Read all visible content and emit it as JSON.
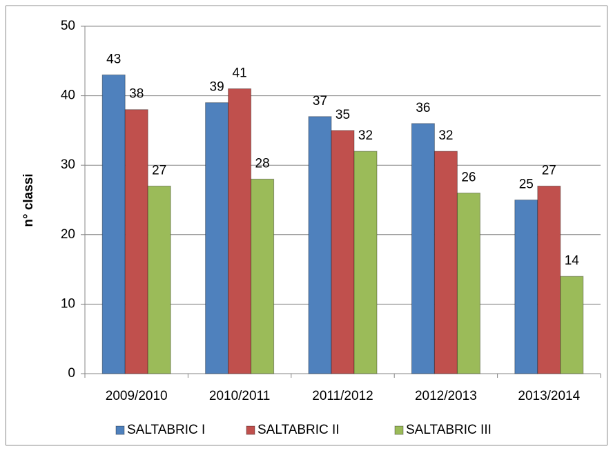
{
  "chart_data": {
    "type": "bar",
    "y_label": "n° classi",
    "categories": [
      "2009/2010",
      "2010/2011",
      "2011/2012",
      "2012/2013",
      "2013/2014"
    ],
    "series": [
      {
        "name": "SALTABRIC I",
        "color": "#4f81bd",
        "values": [
          43,
          39,
          37,
          36,
          25
        ]
      },
      {
        "name": "SALTABRIC II",
        "color": "#c0504d",
        "values": [
          38,
          41,
          35,
          32,
          27
        ]
      },
      {
        "name": "SALTABRIC III",
        "color": "#9bbb59",
        "values": [
          27,
          28,
          32,
          26,
          14
        ]
      }
    ],
    "ylim": [
      0,
      50
    ],
    "yticks": [
      0,
      10,
      20,
      30,
      40,
      50
    ],
    "grid": true,
    "legend": "bottom"
  }
}
